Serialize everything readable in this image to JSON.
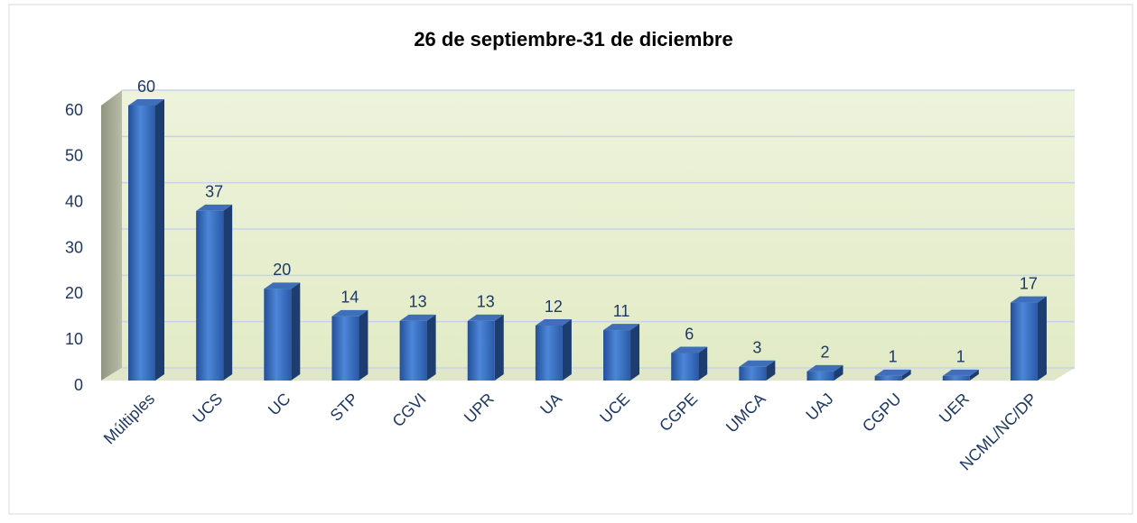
{
  "chart_data": {
    "type": "bar",
    "title": "26 de septiembre-31 de diciembre",
    "categories": [
      "Múltiples",
      "UCS",
      "UC",
      "STP",
      "CGVI",
      "UPR",
      "UA",
      "UCE",
      "CGPE",
      "UMCA",
      "UAJ",
      "CGPU",
      "UER",
      "NCML/NC/DP"
    ],
    "values": [
      60,
      37,
      20,
      14,
      13,
      13,
      12,
      11,
      6,
      3,
      2,
      1,
      1,
      17
    ],
    "color": "#2e64b8",
    "ylim": [
      0,
      60
    ],
    "yticks": [
      0,
      10,
      20,
      30,
      40,
      50,
      60
    ],
    "grid": true
  }
}
